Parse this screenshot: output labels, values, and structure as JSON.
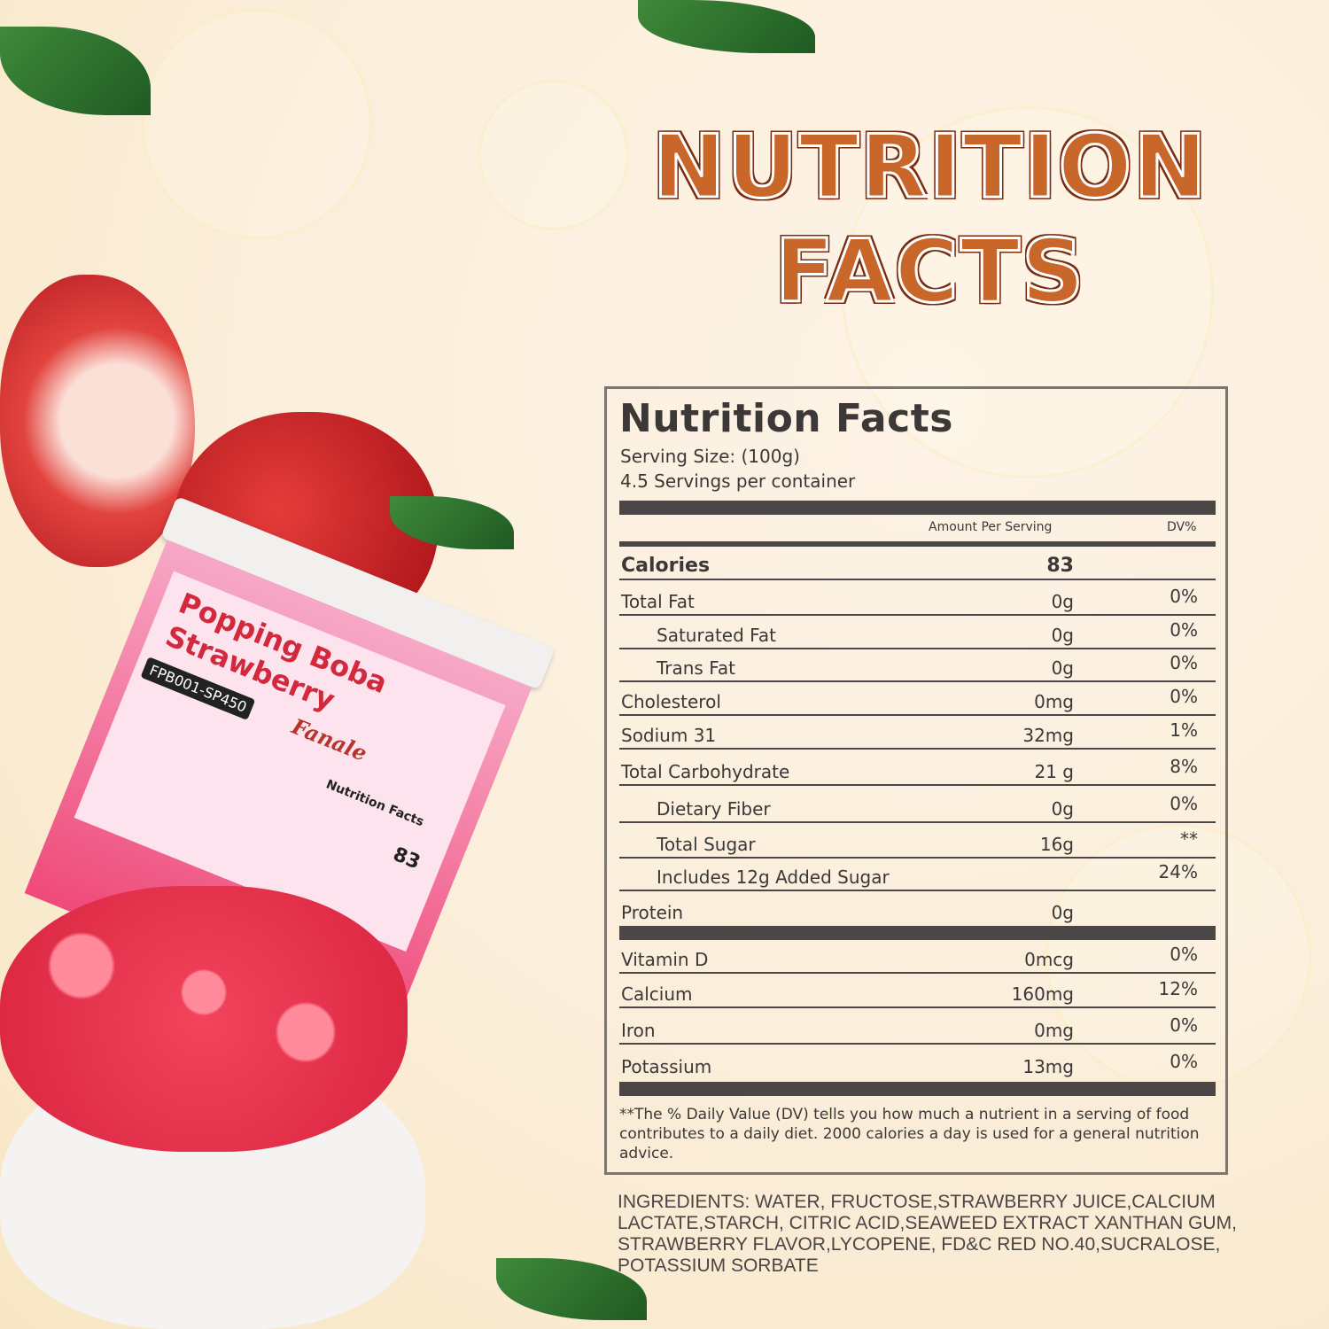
{
  "heading": {
    "line1": "NUTRITION",
    "line2": "FACTS"
  },
  "panel": {
    "title": "Nutrition Facts",
    "serving_size": "Serving Size:  (100g)",
    "servings": "4.5 Servings per container",
    "col_amount": "Amount Per Serving",
    "col_dv": "DV%",
    "rows": [
      {
        "name": "Calories",
        "amount": "83",
        "dv": ""
      },
      {
        "name": "Total Fat",
        "amount": "0g",
        "dv": "0%"
      },
      {
        "name": "Saturated Fat",
        "amount": "0g",
        "dv": "0%"
      },
      {
        "name": "Trans Fat",
        "amount": "0g",
        "dv": "0%"
      },
      {
        "name": "Cholesterol",
        "amount": "0mg",
        "dv": "0%"
      },
      {
        "name": "Sodium 31",
        "amount": "32mg",
        "dv": "1%"
      },
      {
        "name": "Total Carbohydrate",
        "amount": "21 g",
        "dv": "8%"
      },
      {
        "name": "Dietary Fiber",
        "amount": "0g",
        "dv": "0%"
      },
      {
        "name": "Total Sugar",
        "amount": "16g",
        "dv": "**"
      },
      {
        "name": "Includes 12g Added Sugar",
        "amount": "",
        "dv": "24%"
      },
      {
        "name": "Protein",
        "amount": "0g",
        "dv": ""
      },
      {
        "name": "Vitamin D",
        "amount": "0mcg",
        "dv": "0%"
      },
      {
        "name": "Calcium",
        "amount": "160mg",
        "dv": "12%"
      },
      {
        "name": "Iron",
        "amount": "0mg",
        "dv": "0%"
      },
      {
        "name": "Potassium",
        "amount": "13mg",
        "dv": "0%"
      }
    ],
    "footnote": "**The % Daily Value (DV) tells you how much a nutrient in a serving of food contributes to a daily diet. 2000 calories a  day is used for a general nutrition advice."
  },
  "ingredients": "INGREDIENTS: WATER, FRUCTOSE,STRAWBERRY JUICE,CALCIUM LACTATE,STARCH, CITRIC ACID,SEAWEED EXTRACT XANTHAN GUM, STRAWBERRY FLAVOR,LYCOPENE, FD&C RED NO.40,SUCRALOSE, POTASSIUM SORBATE",
  "product": {
    "line1": "Popping Boba",
    "line2": "Strawberry",
    "brand": "Fanale",
    "sku": "FPB001-SP450",
    "label_title": "Nutrition Facts",
    "label_calories": "83"
  },
  "colors": {
    "title": "#c9672b",
    "panel_text": "#3c3837",
    "container": "#f0457a"
  }
}
